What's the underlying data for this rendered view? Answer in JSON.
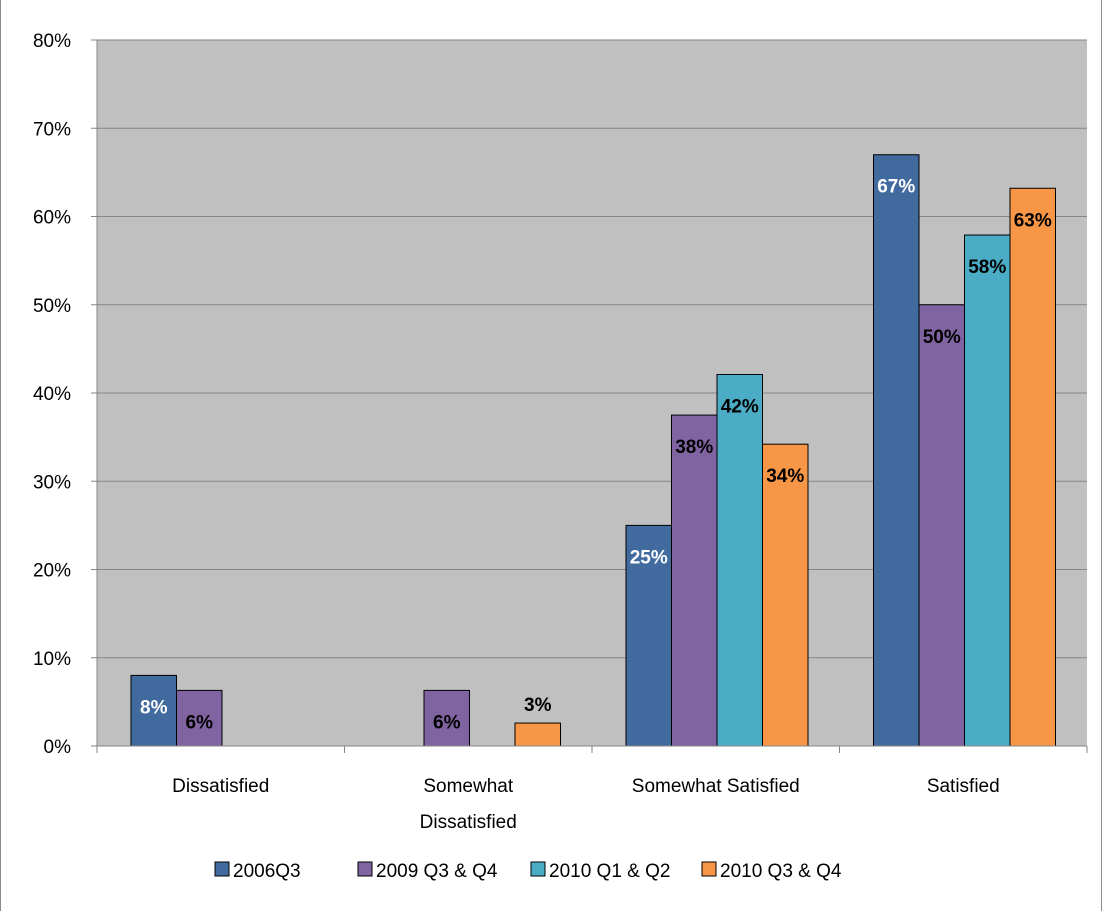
{
  "chart_data": {
    "type": "bar",
    "title": "",
    "xlabel": "",
    "ylabel": "",
    "ylim": [
      0,
      80
    ],
    "y_ticks": [
      "0%",
      "10%",
      "20%",
      "30%",
      "40%",
      "50%",
      "60%",
      "70%",
      "80%"
    ],
    "y_tick_values": [
      0,
      10,
      20,
      30,
      40,
      50,
      60,
      70,
      80
    ],
    "grid": true,
    "legend_position": "bottom",
    "plot_background": "#c0c0c0",
    "categories": [
      [
        "Dissatisfied"
      ],
      [
        "Somewhat",
        "Dissatisfied"
      ],
      [
        "Somewhat Satisfied"
      ],
      [
        "Satisfied"
      ]
    ],
    "series": [
      {
        "name": "2006Q3",
        "color": "#416a9e",
        "label_color": "#ffffff",
        "values": [
          8,
          null,
          25,
          67
        ],
        "labels": [
          "8%",
          "",
          "25%",
          "67%"
        ]
      },
      {
        "name": "2009 Q3 & Q4",
        "color": "#8064a2",
        "label_color": "#000000",
        "values": [
          6.3,
          6.3,
          37.5,
          50
        ],
        "labels": [
          "6%",
          "6%",
          "38%",
          "50%"
        ]
      },
      {
        "name": "2010 Q1 & Q2",
        "color": "#4bacc6",
        "label_color": "#000000",
        "values": [
          null,
          null,
          42.1,
          57.9
        ],
        "labels": [
          "",
          "",
          "42%",
          "58%"
        ]
      },
      {
        "name": "2010 Q3 & Q4",
        "color": "#f79646",
        "label_color": "#000000",
        "values": [
          null,
          2.6,
          34.2,
          63.2
        ],
        "labels": [
          "",
          "3%",
          "34%",
          "63%"
        ]
      }
    ]
  }
}
